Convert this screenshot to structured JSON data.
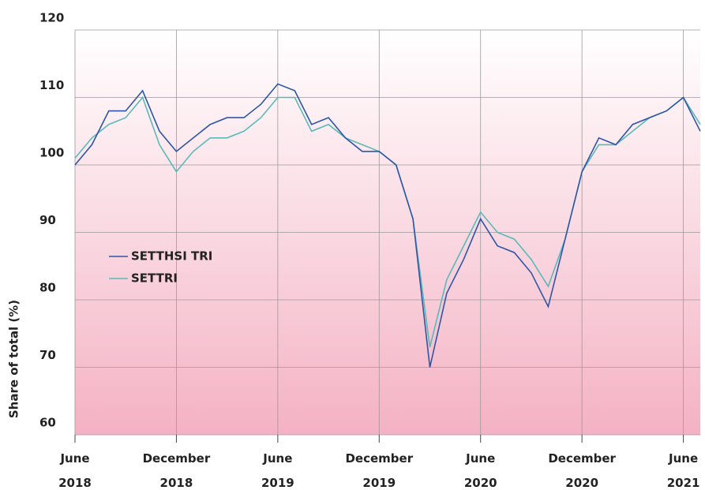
{
  "chart_data": {
    "type": "line",
    "ylabel": "Share of total (%)",
    "x": [
      "2018-06",
      "2018-07",
      "2018-08",
      "2018-09",
      "2018-10",
      "2018-11",
      "2018-12",
      "2019-01",
      "2019-02",
      "2019-03",
      "2019-04",
      "2019-05",
      "2019-06",
      "2019-07",
      "2019-08",
      "2019-09",
      "2019-10",
      "2019-11",
      "2019-12",
      "2020-01",
      "2020-02",
      "2020-03",
      "2020-04",
      "2020-05",
      "2020-06",
      "2020-07",
      "2020-08",
      "2020-09",
      "2020-10",
      "2020-11",
      "2020-12",
      "2021-01",
      "2021-02",
      "2021-03",
      "2021-04",
      "2021-05",
      "2021-06",
      "2021-07"
    ],
    "series": [
      {
        "name": "SETTHSI TRI",
        "color": "#2f56a6",
        "values": [
          100,
          103,
          108,
          108,
          111,
          105,
          102,
          104,
          106,
          107,
          107,
          109,
          112,
          111,
          106,
          107,
          104,
          102,
          102,
          100,
          92,
          70,
          81,
          86,
          92,
          88,
          87,
          84,
          79,
          89,
          99,
          104,
          103,
          106,
          107,
          108,
          110,
          105
        ]
      },
      {
        "name": "SETTRI",
        "color": "#5bbab6",
        "values": [
          101,
          104,
          106,
          107,
          110,
          103,
          99,
          102,
          104,
          104,
          105,
          107,
          110,
          110,
          105,
          106,
          104,
          103,
          102,
          100,
          92,
          73,
          83,
          88,
          93,
          90,
          89,
          86,
          82,
          89,
          99,
          103,
          103,
          105,
          107,
          108,
          110,
          106
        ]
      }
    ],
    "xlim": [
      "2018-06",
      "2021-07"
    ],
    "xticks": [
      {
        "value": "2018-06",
        "label": "June 2018"
      },
      {
        "value": "2018-12",
        "label": "December 2018"
      },
      {
        "value": "2019-06",
        "label": "June 2019"
      },
      {
        "value": "2019-12",
        "label": "December 2019"
      },
      {
        "value": "2020-06",
        "label": "June 2020"
      },
      {
        "value": "2020-12",
        "label": "December 2020"
      },
      {
        "value": "2021-06",
        "label": "June 2021"
      }
    ],
    "ylim": [
      60,
      120
    ],
    "yticks": [
      60,
      70,
      80,
      90,
      100,
      110,
      120
    ],
    "grid": true
  }
}
